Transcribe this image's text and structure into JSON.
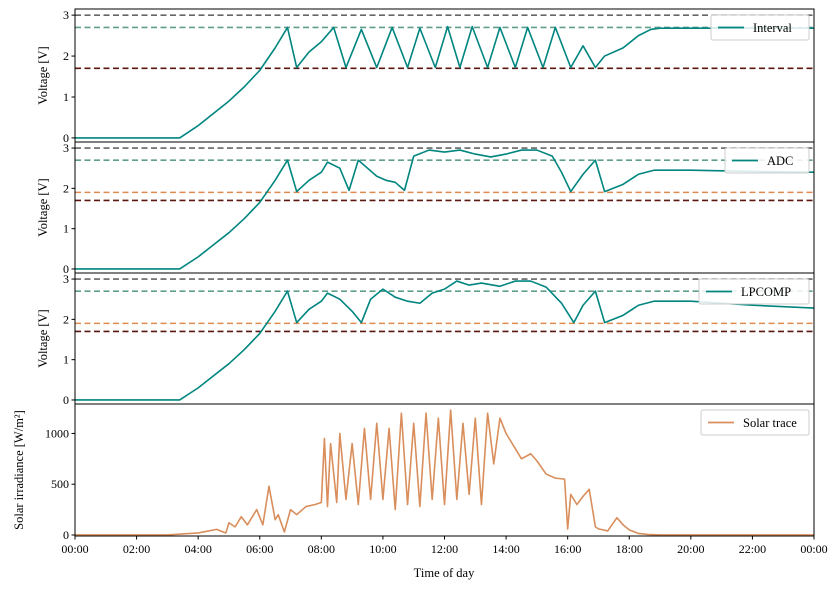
{
  "colors": {
    "trace": "#00857f",
    "solar": "#d98e5c",
    "ref_top": "#666666",
    "ref_teal": "#5f9e8a",
    "ref_orange": "#e08b50",
    "ref_dark": "#5a1710"
  },
  "chart_data": [
    {
      "type": "line",
      "legend_location": "top-right",
      "ylabel": "Voltage [V]",
      "ylim": [
        -0.1,
        3.15
      ],
      "yticks": [
        "0",
        "1",
        "2",
        "3"
      ],
      "xlim": [
        0,
        24
      ],
      "reference_lines": [
        {
          "y": 3.0,
          "color": "#666666"
        },
        {
          "y": 2.7,
          "color": "#5f9e8a"
        },
        {
          "y": 1.7,
          "color": "#5a1710"
        }
      ],
      "series": [
        {
          "name": "Interval",
          "color": "#00857f",
          "x": [
            0,
            3.4,
            4.0,
            4.5,
            5.0,
            5.5,
            6.0,
            6.5,
            6.9,
            7.2,
            7.6,
            8.0,
            8.4,
            8.8,
            9.3,
            9.8,
            10.3,
            10.8,
            11.2,
            11.7,
            12.1,
            12.5,
            12.9,
            13.4,
            13.8,
            14.3,
            14.7,
            15.2,
            15.6,
            16.1,
            16.5,
            16.9,
            17.2,
            17.8,
            18.3,
            18.7,
            19.0,
            20.0,
            22.0,
            24.0
          ],
          "y": [
            0.0,
            0.0,
            0.3,
            0.6,
            0.9,
            1.25,
            1.65,
            2.2,
            2.7,
            1.72,
            2.1,
            2.35,
            2.7,
            1.72,
            2.65,
            1.72,
            2.7,
            1.72,
            2.68,
            1.72,
            2.72,
            1.72,
            2.72,
            1.72,
            2.7,
            1.72,
            2.7,
            1.72,
            2.7,
            1.72,
            2.25,
            1.72,
            2.0,
            2.2,
            2.5,
            2.65,
            2.68,
            2.68,
            2.68,
            2.68
          ]
        }
      ]
    },
    {
      "type": "line",
      "legend_location": "top-right",
      "ylabel": "Voltage [V]",
      "ylim": [
        -0.1,
        3.15
      ],
      "yticks": [
        "0",
        "1",
        "2",
        "3"
      ],
      "xlim": [
        0,
        24
      ],
      "reference_lines": [
        {
          "y": 3.0,
          "color": "#666666"
        },
        {
          "y": 2.7,
          "color": "#5f9e8a"
        },
        {
          "y": 1.9,
          "color": "#e08b50"
        },
        {
          "y": 1.7,
          "color": "#5a1710"
        }
      ],
      "series": [
        {
          "name": "ADC",
          "color": "#00857f",
          "x": [
            0,
            3.4,
            4.0,
            4.5,
            5.0,
            5.5,
            6.0,
            6.5,
            6.9,
            7.2,
            7.6,
            8.0,
            8.2,
            8.6,
            8.9,
            9.2,
            9.5,
            9.8,
            10.1,
            10.4,
            10.7,
            11.0,
            11.5,
            12.0,
            12.5,
            13.0,
            13.5,
            14.0,
            14.5,
            15.0,
            15.5,
            15.8,
            16.1,
            16.5,
            16.9,
            17.2,
            17.8,
            18.3,
            18.8,
            20.0,
            22.0,
            24.0
          ],
          "y": [
            0.0,
            0.0,
            0.3,
            0.6,
            0.9,
            1.25,
            1.65,
            2.2,
            2.7,
            1.92,
            2.2,
            2.4,
            2.65,
            2.5,
            1.95,
            2.7,
            2.5,
            2.3,
            2.2,
            2.15,
            1.95,
            2.8,
            2.95,
            2.9,
            2.95,
            2.85,
            2.78,
            2.85,
            2.95,
            2.95,
            2.8,
            2.4,
            1.92,
            2.35,
            2.7,
            1.92,
            2.1,
            2.35,
            2.45,
            2.45,
            2.42,
            2.4
          ]
        }
      ]
    },
    {
      "type": "line",
      "legend_location": "top-right",
      "ylabel": "Voltage [V]",
      "ylim": [
        -0.1,
        3.15
      ],
      "yticks": [
        "0",
        "1",
        "2",
        "3"
      ],
      "xlim": [
        0,
        24
      ],
      "reference_lines": [
        {
          "y": 3.0,
          "color": "#666666"
        },
        {
          "y": 2.7,
          "color": "#5f9e8a"
        },
        {
          "y": 1.9,
          "color": "#e08b50"
        },
        {
          "y": 1.7,
          "color": "#5a1710"
        }
      ],
      "series": [
        {
          "name": "LPCOMP",
          "color": "#00857f",
          "x": [
            0,
            3.4,
            4.0,
            4.5,
            5.0,
            5.5,
            6.0,
            6.5,
            6.9,
            7.2,
            7.6,
            8.0,
            8.2,
            8.6,
            9.0,
            9.3,
            9.6,
            10.0,
            10.4,
            10.8,
            11.2,
            11.6,
            12.0,
            12.4,
            12.8,
            13.2,
            13.8,
            14.3,
            14.8,
            15.3,
            15.8,
            16.2,
            16.5,
            16.9,
            17.2,
            17.8,
            18.3,
            18.8,
            20.0,
            22.0,
            24.0
          ],
          "y": [
            0.0,
            0.0,
            0.3,
            0.6,
            0.9,
            1.25,
            1.65,
            2.2,
            2.7,
            1.92,
            2.25,
            2.45,
            2.65,
            2.5,
            2.2,
            1.92,
            2.5,
            2.75,
            2.55,
            2.45,
            2.4,
            2.65,
            2.75,
            2.95,
            2.85,
            2.9,
            2.82,
            2.95,
            2.95,
            2.8,
            2.4,
            1.92,
            2.35,
            2.7,
            1.92,
            2.1,
            2.35,
            2.45,
            2.45,
            2.35,
            2.28
          ]
        }
      ]
    },
    {
      "type": "line",
      "legend_location": "top-right",
      "xlabel": "Time of day",
      "ylabel": "Solar irradiance [W/m²]",
      "ylim": [
        -10,
        1290
      ],
      "yticks": [
        "0",
        "500",
        "1000"
      ],
      "xlim": [
        0,
        24
      ],
      "xticks": [
        "00:00",
        "02:00",
        "04:00",
        "06:00",
        "08:00",
        "10:00",
        "12:00",
        "14:00",
        "16:00",
        "18:00",
        "20:00",
        "22:00",
        "00:00"
      ],
      "series": [
        {
          "name": "Solar trace",
          "color": "#d98e5c",
          "x": [
            0,
            3.0,
            4.0,
            4.6,
            4.9,
            5.0,
            5.2,
            5.4,
            5.6,
            5.9,
            6.1,
            6.3,
            6.5,
            6.6,
            6.8,
            7.0,
            7.2,
            7.5,
            7.8,
            8.0,
            8.1,
            8.2,
            8.3,
            8.5,
            8.6,
            8.8,
            9.0,
            9.2,
            9.4,
            9.6,
            9.8,
            10.0,
            10.2,
            10.4,
            10.6,
            10.8,
            11.0,
            11.2,
            11.4,
            11.6,
            11.8,
            12.0,
            12.2,
            12.4,
            12.6,
            12.8,
            13.0,
            13.2,
            13.4,
            13.6,
            13.8,
            14.0,
            14.3,
            14.5,
            14.8,
            15.0,
            15.3,
            15.6,
            15.9,
            16.0,
            16.1,
            16.3,
            16.5,
            16.7,
            16.9,
            17.0,
            17.3,
            17.6,
            17.8,
            18.0,
            18.3,
            18.6,
            19.0,
            24.0
          ],
          "y": [
            0,
            0,
            20,
            55,
            20,
            120,
            80,
            180,
            100,
            250,
            100,
            480,
            150,
            200,
            30,
            250,
            200,
            280,
            300,
            320,
            950,
            280,
            900,
            320,
            1000,
            350,
            900,
            300,
            1050,
            350,
            1100,
            350,
            1050,
            250,
            1200,
            300,
            1100,
            280,
            1200,
            350,
            1150,
            300,
            1230,
            350,
            1100,
            400,
            1150,
            300,
            1200,
            700,
            1150,
            1000,
            850,
            750,
            800,
            730,
            600,
            560,
            550,
            60,
            400,
            300,
            380,
            450,
            80,
            60,
            40,
            170,
            100,
            50,
            15,
            5,
            0,
            0
          ]
        }
      ]
    }
  ]
}
